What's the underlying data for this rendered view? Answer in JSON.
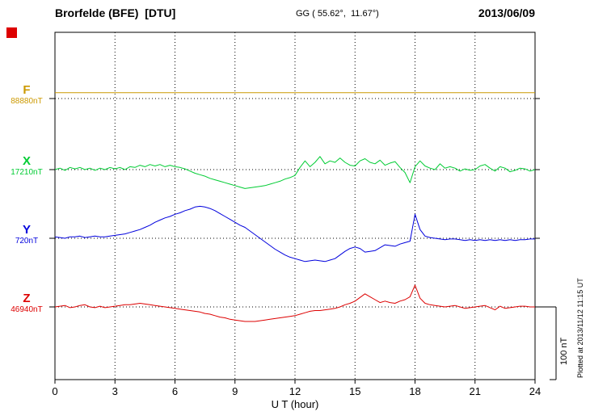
{
  "header": {
    "station": "Brorfelde (BFE)  [DTU]",
    "coords": "GG ( 55.62°,  11.67°)",
    "date": "2013/06/09"
  },
  "plotted_note": "Plotted at 2013/11/12 11:15 UT",
  "scale_bar": {
    "label": "100 nT",
    "nT": 100
  },
  "chart_data": {
    "type": "line",
    "title": "Brorfelde (BFE)  [DTU]",
    "station_coords": "GG ( 55.62°,  11.67°)",
    "date": "2013/06/09",
    "xlabel": "U T (hour)",
    "xlim": [
      0,
      24
    ],
    "xticks": [
      0,
      3,
      6,
      9,
      12,
      15,
      18,
      21,
      24
    ],
    "grid": "dotted vertical lines at each 3-hour tick; dotted horizontal baseline per component",
    "value_unit": "nT offset from component baseline",
    "scale_bar_nT": 100,
    "series": [
      {
        "name": "F",
        "baseline_label": "88880nT",
        "color": "#cc9900",
        "x_start": 0,
        "x_step": 24,
        "values": [
          8,
          8
        ]
      },
      {
        "name": "X",
        "baseline_label": "17210nT",
        "color": "#00cc33",
        "x_start": 0,
        "x_step": 0.25,
        "values": [
          0,
          2,
          -1,
          3,
          1,
          3,
          0,
          2,
          -1,
          2,
          0,
          3,
          1,
          3,
          0,
          4,
          3,
          6,
          4,
          7,
          5,
          7,
          4,
          6,
          4,
          3,
          1,
          -2,
          -5,
          -7,
          -9,
          -12,
          -14,
          -16,
          -18,
          -20,
          -22,
          -24,
          -26,
          -25,
          -24,
          -23,
          -22,
          -20,
          -18,
          -16,
          -13,
          -11,
          -8,
          3,
          12,
          4,
          10,
          18,
          8,
          12,
          10,
          16,
          10,
          6,
          5,
          12,
          15,
          10,
          8,
          13,
          6,
          9,
          11,
          3,
          -4,
          -18,
          4,
          12,
          5,
          2,
          0,
          8,
          2,
          4,
          2,
          -2,
          1,
          -1,
          0,
          5,
          7,
          2,
          -2,
          4,
          2,
          -3,
          -1,
          2,
          1,
          -2,
          0
        ]
      },
      {
        "name": "Y",
        "baseline_label": "720nT",
        "color": "#0000dd",
        "x_start": 0,
        "x_step": 0.25,
        "values": [
          2,
          1,
          0,
          2,
          2,
          3,
          1,
          2,
          3,
          2,
          2,
          3,
          4,
          5,
          6,
          8,
          10,
          12,
          15,
          18,
          22,
          25,
          28,
          30,
          33,
          35,
          38,
          40,
          43,
          44,
          43,
          41,
          38,
          34,
          30,
          26,
          22,
          18,
          15,
          10,
          5,
          0,
          -5,
          -10,
          -15,
          -19,
          -23,
          -26,
          -28,
          -30,
          -32,
          -31,
          -30,
          -31,
          -32,
          -30,
          -28,
          -23,
          -18,
          -14,
          -12,
          -14,
          -19,
          -18,
          -17,
          -13,
          -9,
          -10,
          -11,
          -8,
          -6,
          -4,
          33,
          12,
          3,
          1,
          0,
          -1,
          -2,
          -1,
          -1,
          -2,
          -3,
          -2,
          -3,
          -2,
          -3,
          -2,
          -3,
          -2,
          -3,
          -2,
          -3,
          -2,
          -2,
          -1,
          -1
        ]
      },
      {
        "name": "Z",
        "baseline_label": "46940nT",
        "color": "#dd0000",
        "x_start": 0,
        "x_step": 0.25,
        "values": [
          0,
          1,
          2,
          -1,
          0,
          2,
          3,
          0,
          -1,
          1,
          -1,
          0,
          1,
          2,
          3,
          3,
          4,
          5,
          4,
          3,
          2,
          1,
          0,
          -1,
          -2,
          -3,
          -4,
          -5,
          -6,
          -7,
          -9,
          -10,
          -12,
          -14,
          -15,
          -17,
          -18,
          -19,
          -20,
          -20,
          -20,
          -19,
          -18,
          -17,
          -16,
          -15,
          -14,
          -13,
          -12,
          -10,
          -8,
          -6,
          -5,
          -5,
          -4,
          -3,
          -2,
          0,
          3,
          5,
          8,
          13,
          18,
          14,
          10,
          6,
          8,
          6,
          5,
          8,
          10,
          14,
          30,
          12,
          5,
          3,
          2,
          1,
          0,
          1,
          2,
          0,
          -2,
          -1,
          0,
          1,
          2,
          -1,
          -4,
          1,
          -2,
          -1,
          0,
          1,
          1,
          0,
          0
        ]
      }
    ]
  }
}
